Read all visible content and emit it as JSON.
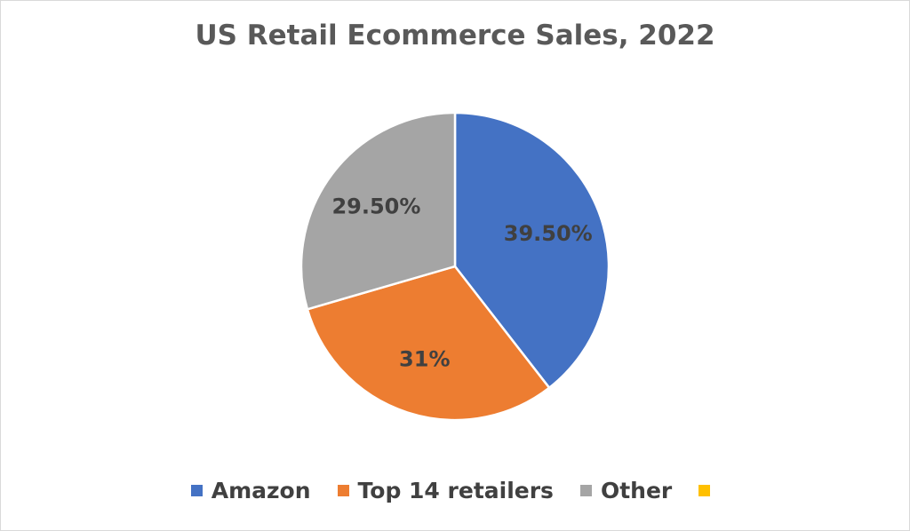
{
  "chart_data": {
    "type": "pie",
    "title": "US Retail Ecommerce Sales, 2022",
    "slices": [
      {
        "name": "Amazon",
        "value": 39.5,
        "label": "39.50%",
        "color": "#4472c4"
      },
      {
        "name": "Top 14 retailers",
        "value": 31,
        "label": "31%",
        "color": "#ed7d31"
      },
      {
        "name": "Other",
        "value": 29.5,
        "label": "29.50%",
        "color": "#a5a5a5"
      }
    ],
    "legend": {
      "placement": "bottom",
      "entries": [
        {
          "name": "Amazon",
          "color": "#4472c4"
        },
        {
          "name": "Top 14 retailers",
          "color": "#ed7d31"
        },
        {
          "name": "Other",
          "color": "#a5a5a5"
        },
        {
          "name": "",
          "color": "#ffc000"
        }
      ]
    }
  }
}
